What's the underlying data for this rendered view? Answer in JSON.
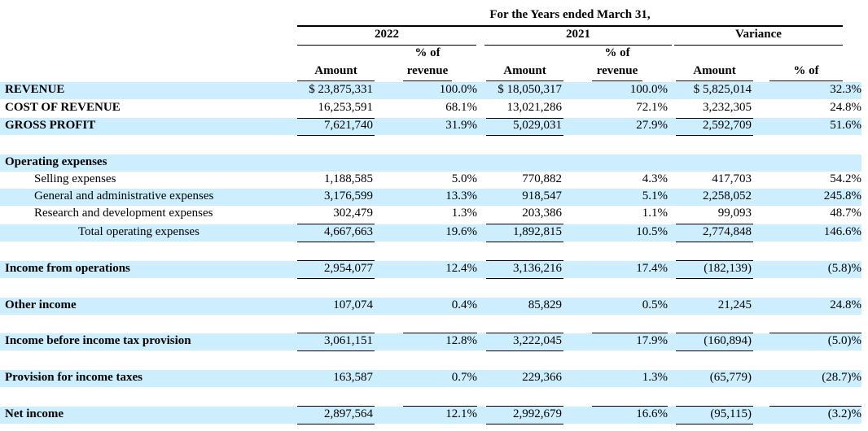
{
  "header": {
    "title": "For the Years ended March 31,",
    "year_2022": "2022",
    "year_2021": "2021",
    "variance": "Variance",
    "col_amount": "Amount",
    "col_pct_line1": "% of",
    "col_pct_line2": "revenue",
    "col_var_pct": "% of"
  },
  "rows": [
    {
      "label": "REVENUE",
      "a22": "$ 23,875,331",
      "p22": "100.0%",
      "a21": "$ 18,050,317",
      "p21": "100.0%",
      "va": "$  5,825,014",
      "vp": "32.3%"
    },
    {
      "label": "COST OF REVENUE",
      "a22": "16,253,591",
      "p22": "68.1%",
      "a21": "13,021,286",
      "p21": "72.1%",
      "va": "3,232,305",
      "vp": "24.8%"
    },
    {
      "label": "GROSS PROFIT",
      "a22": "7,621,740",
      "p22": "31.9%",
      "a21": "5,029,031",
      "p21": "27.9%",
      "va": "2,592,709",
      "vp": "51.6%"
    },
    {
      "label": "Operating expenses"
    },
    {
      "label": "Selling expenses",
      "a22": "1,188,585",
      "p22": "5.0%",
      "a21": "770,882",
      "p21": "4.3%",
      "va": "417,703",
      "vp": "54.2%"
    },
    {
      "label": "General and administrative expenses",
      "a22": "3,176,599",
      "p22": "13.3%",
      "a21": "918,547",
      "p21": "5.1%",
      "va": "2,258,052",
      "vp": "245.8%"
    },
    {
      "label": "Research and development expenses",
      "a22": "302,479",
      "p22": "1.3%",
      "a21": "203,386",
      "p21": "1.1%",
      "va": "99,093",
      "vp": "48.7%"
    },
    {
      "label": "Total operating expenses",
      "a22": "4,667,663",
      "p22": "19.6%",
      "a21": "1,892,815",
      "p21": "10.5%",
      "va": "2,774,848",
      "vp": "146.6%"
    },
    {
      "label": "Income from operations",
      "a22": "2,954,077",
      "p22": "12.4%",
      "a21": "3,136,216",
      "p21": "17.4%",
      "va": "(182,139)",
      "vp": "(5.8)%"
    },
    {
      "label": "Other income",
      "a22": "107,074",
      "p22": "0.4%",
      "a21": "85,829",
      "p21": "0.5%",
      "va": "21,245",
      "vp": "24.8%"
    },
    {
      "label": "Income before income tax provision",
      "a22": "3,061,151",
      "p22": "12.8%",
      "a21": "3,222,045",
      "p21": "17.9%",
      "va": "(160,894)",
      "vp": "(5.0)%"
    },
    {
      "label": "Provision for income taxes",
      "a22": "163,587",
      "p22": "0.7%",
      "a21": "229,366",
      "p21": "1.3%",
      "va": "(65,779)",
      "vp": "(28.7)%"
    },
    {
      "label": "Net income",
      "a22": "2,897,564",
      "p22": "12.1%",
      "a21": "2,992,679",
      "p21": "16.6%",
      "va": "(95,115)",
      "vp": "(3.2)%"
    }
  ]
}
